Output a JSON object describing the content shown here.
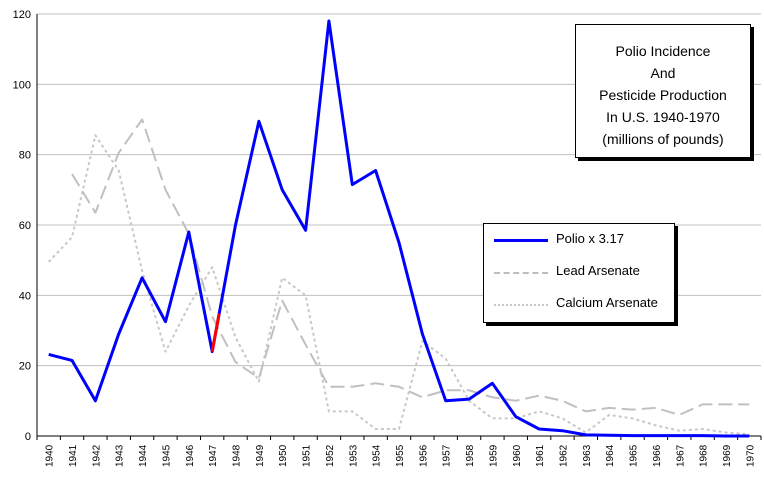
{
  "chart_data": {
    "type": "line",
    "title_lines": [
      "Polio Incidence",
      "And",
      "Pesticide Production",
      "In U.S. 1940-1970",
      "(millions of pounds)"
    ],
    "x": [
      1940,
      1941,
      1942,
      1943,
      1944,
      1945,
      1946,
      1947,
      1948,
      1949,
      1950,
      1951,
      1952,
      1953,
      1954,
      1955,
      1956,
      1957,
      1958,
      1959,
      1960,
      1961,
      1962,
      1963,
      1964,
      1965,
      1966,
      1967,
      1968,
      1969,
      1970
    ],
    "ylim": [
      0,
      120
    ],
    "yticks": [
      0,
      20,
      40,
      60,
      80,
      100,
      120
    ],
    "grid": "horizontal",
    "legend_position": "right",
    "series": [
      {
        "name": "Polio x 3.17",
        "color": "#0000ff",
        "style": "solid",
        "values": [
          23.2,
          21.5,
          10,
          29,
          45,
          32.5,
          58,
          24,
          60,
          89.5,
          70,
          58.5,
          118,
          71.5,
          75.5,
          55,
          29,
          10,
          10.5,
          15,
          5.5,
          2,
          1.5,
          0.3,
          0.2,
          0.1,
          0.1,
          0.1,
          0.1,
          0,
          0
        ]
      },
      {
        "name": "Lead Arsenate",
        "color": "#c0c0c0",
        "style": "dashed",
        "values": [
          null,
          74.5,
          63.5,
          80.5,
          90,
          70,
          57.5,
          34,
          21,
          16.5,
          38.5,
          26,
          14,
          14,
          15,
          14,
          11,
          13,
          13,
          11,
          10,
          11.5,
          10,
          7,
          8,
          7.5,
          8,
          6,
          9,
          9,
          9
        ]
      },
      {
        "name": "Calcium Arsenate",
        "color": "#c8c8c8",
        "style": "dotted",
        "values": [
          49.5,
          56.5,
          85.5,
          75.5,
          47,
          24,
          37,
          48,
          28,
          15.5,
          45,
          40,
          7,
          7,
          2,
          2,
          27,
          22,
          10,
          5,
          5,
          7,
          5,
          1,
          6,
          5,
          3,
          1.5,
          2,
          1,
          0.5
        ]
      }
    ],
    "highlight_segment": {
      "from": 1947,
      "to": 1947.3,
      "color": "#ff0000"
    }
  }
}
